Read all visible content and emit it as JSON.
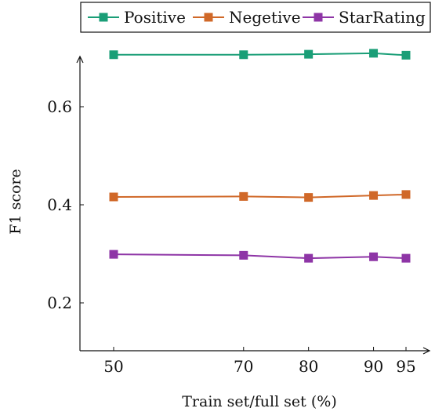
{
  "chart_data": {
    "type": "line",
    "xlabel": "Train set/full set (%)",
    "ylabel": "F1 score",
    "x": [
      50,
      70,
      80,
      90,
      95
    ],
    "x_tick_labels": [
      "50",
      "70",
      "80",
      "90",
      "95"
    ],
    "xlim": [
      45,
      100
    ],
    "ylim": [
      0.1,
      0.71
    ],
    "y_ticks": [
      0.2,
      0.4,
      0.6
    ],
    "y_tick_labels": [
      "0.2",
      "0.4",
      "0.6"
    ],
    "grid": false,
    "legend_position": "top",
    "series": [
      {
        "name": "Positive",
        "color": "#1a9e77",
        "values": [
          0.706,
          0.706,
          0.707,
          0.709,
          0.705
        ]
      },
      {
        "name": "Negetive",
        "color": "#d06828",
        "values": [
          0.416,
          0.417,
          0.415,
          0.419,
          0.421
        ]
      },
      {
        "name": "StarRating",
        "color": "#8e35a6",
        "values": [
          0.299,
          0.297,
          0.291,
          0.294,
          0.291
        ]
      }
    ]
  }
}
